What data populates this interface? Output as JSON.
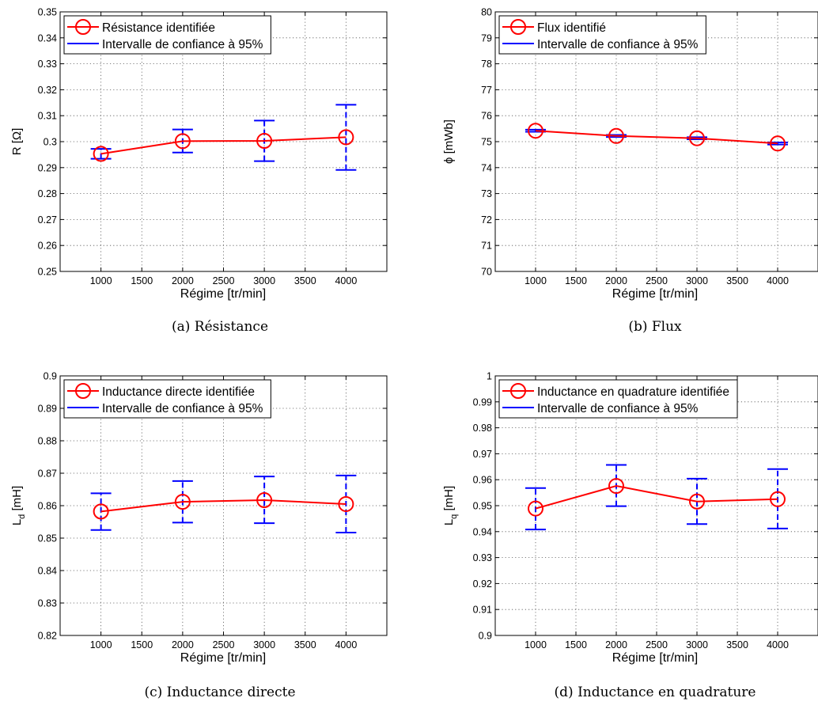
{
  "colors": {
    "estimate": "#ff0000",
    "interval": "#0000ff",
    "grid": "#555555"
  },
  "chart_data": [
    {
      "type": "line",
      "caption": "(a)  Résistance",
      "xlabel": "Régime [tr/min]",
      "ylabel": "R [Ω]",
      "ylabel_sub": "",
      "ylabel_unit": "",
      "xlim": [
        500,
        4500
      ],
      "ylim": [
        0.25,
        0.35
      ],
      "xticks": [
        1000,
        1500,
        2000,
        2500,
        3000,
        3500,
        4000
      ],
      "xtick_labels": [
        "1000",
        "1500",
        "2000",
        "2500",
        "3000",
        "3500",
        "4000"
      ],
      "yticks": [
        0.25,
        0.26,
        0.27,
        0.28,
        0.29,
        0.3,
        0.31,
        0.32,
        0.33,
        0.34,
        0.35
      ],
      "ytick_labels": [
        "0.25",
        "0.26",
        "0.27",
        "0.28",
        "0.29",
        "0.3",
        "0.31",
        "0.32",
        "0.33",
        "0.34",
        "0.35"
      ],
      "grid": true,
      "legend_position": "top-left",
      "x": [
        1000,
        2000,
        3000,
        4000
      ],
      "series": [
        {
          "name": "Résistance identifiée",
          "values": [
            0.2953,
            0.3002,
            0.3003,
            0.3017
          ]
        },
        {
          "name": "Intervalle de confiance à 95%",
          "lower": [
            0.2934,
            0.2958,
            0.2925,
            0.2891
          ],
          "upper": [
            0.2972,
            0.3047,
            0.3081,
            0.3142
          ]
        }
      ]
    },
    {
      "type": "line",
      "caption": "(b)  Flux",
      "xlabel": "Régime [tr/min]",
      "ylabel": "ϕ [mWb]",
      "ylabel_sub": "",
      "ylabel_unit": "",
      "xlim": [
        500,
        4500
      ],
      "ylim": [
        70,
        80
      ],
      "xticks": [
        1000,
        1500,
        2000,
        2500,
        3000,
        3500,
        4000
      ],
      "xtick_labels": [
        "1000",
        "1500",
        "2000",
        "2500",
        "3000",
        "3500",
        "4000"
      ],
      "yticks": [
        70,
        71,
        72,
        73,
        74,
        75,
        76,
        77,
        78,
        79,
        80
      ],
      "ytick_labels": [
        "70",
        "71",
        "72",
        "73",
        "74",
        "75",
        "76",
        "77",
        "78",
        "79",
        "80"
      ],
      "grid": true,
      "legend_position": "top-left",
      "x": [
        1000,
        2000,
        3000,
        4000
      ],
      "series": [
        {
          "name": "Flux identifié",
          "values": [
            75.42,
            75.22,
            75.13,
            74.93
          ]
        },
        {
          "name": "Intervalle de confiance à 95%",
          "lower": [
            75.38,
            75.18,
            75.09,
            74.89
          ],
          "upper": [
            75.46,
            75.26,
            75.17,
            74.97
          ]
        }
      ]
    },
    {
      "type": "line",
      "caption": "(c)  Inductance directe",
      "xlabel": "Régime [tr/min]",
      "ylabel": "L",
      "ylabel_sub": "d",
      "ylabel_unit": " [mH]",
      "xlim": [
        500,
        4500
      ],
      "ylim": [
        0.82,
        0.9
      ],
      "xticks": [
        1000,
        1500,
        2000,
        2500,
        3000,
        3500,
        4000
      ],
      "xtick_labels": [
        "1000",
        "1500",
        "2000",
        "2500",
        "3000",
        "3500",
        "4000"
      ],
      "yticks": [
        0.82,
        0.83,
        0.84,
        0.85,
        0.86,
        0.87,
        0.88,
        0.89,
        0.9
      ],
      "ytick_labels": [
        "0.82",
        "0.83",
        "0.84",
        "0.85",
        "0.86",
        "0.87",
        "0.88",
        "0.89",
        "0.9"
      ],
      "grid": true,
      "legend_position": "top-left",
      "x": [
        1000,
        2000,
        3000,
        4000
      ],
      "series": [
        {
          "name": "Inductance directe identifiée",
          "values": [
            0.8582,
            0.8612,
            0.8617,
            0.8605
          ]
        },
        {
          "name": "Intervalle de confiance à 95%",
          "lower": [
            0.8525,
            0.8548,
            0.8546,
            0.8517
          ],
          "upper": [
            0.8638,
            0.8676,
            0.869,
            0.8693
          ]
        }
      ]
    },
    {
      "type": "line",
      "caption": "(d)  Inductance en quadrature",
      "xlabel": "Régime [tr/min]",
      "ylabel": "L",
      "ylabel_sub": "q",
      "ylabel_unit": " [mH]",
      "xlim": [
        500,
        4500
      ],
      "ylim": [
        0.9,
        1.0
      ],
      "xticks": [
        1000,
        1500,
        2000,
        2500,
        3000,
        3500,
        4000
      ],
      "xtick_labels": [
        "1000",
        "1500",
        "2000",
        "2500",
        "3000",
        "3500",
        "4000"
      ],
      "yticks": [
        0.9,
        0.91,
        0.92,
        0.93,
        0.94,
        0.95,
        0.96,
        0.97,
        0.98,
        0.99,
        1.0
      ],
      "ytick_labels": [
        "0.9",
        "0.91",
        "0.92",
        "0.93",
        "0.94",
        "0.95",
        "0.96",
        "0.97",
        "0.98",
        "0.99",
        "1"
      ],
      "grid": true,
      "legend_position": "top-left",
      "x": [
        1000,
        2000,
        3000,
        4000
      ],
      "series": [
        {
          "name": "Inductance en quadrature identifiée",
          "values": [
            0.9489,
            0.9576,
            0.9516,
            0.9525
          ]
        },
        {
          "name": "Intervalle de confiance à 95%",
          "lower": [
            0.9408,
            0.9498,
            0.9429,
            0.9412
          ],
          "upper": [
            0.9568,
            0.9657,
            0.9604,
            0.9641
          ]
        }
      ]
    }
  ]
}
